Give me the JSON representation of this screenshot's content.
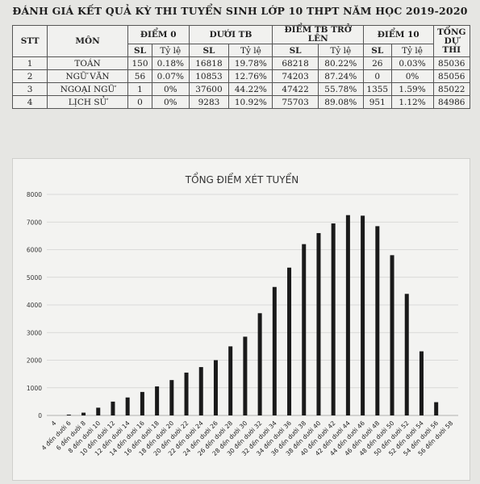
{
  "page_title": "ĐÁNH GIÁ KẾT QUẢ KỲ THI TUYỂN SINH LỚP 10 THPT NĂM HỌC 2019-2020",
  "table": {
    "headers": {
      "stt": "STT",
      "mon": "MÔN",
      "diem0": "ĐIỂM 0",
      "duoi_tb": "DƯỚI TB",
      "tb_tro_len": "ĐIỂM TB TRỞ LÊN",
      "diem10": "ĐIỂM 10",
      "tong": "TỔNG DỰ THI",
      "sl": "SL",
      "ty_le": "Tỷ lệ"
    },
    "rows": [
      {
        "stt": "1",
        "mon": "TOÁN",
        "d0_sl": "150",
        "d0_tl": "0.18%",
        "dtb_sl": "16818",
        "dtb_tl": "19.78%",
        "tb_sl": "68218",
        "tb_tl": "80.22%",
        "d10_sl": "26",
        "d10_tl": "0.03%",
        "tong": "85036"
      },
      {
        "stt": "2",
        "mon": "NGỮ VĂN",
        "d0_sl": "56",
        "d0_tl": "0.07%",
        "dtb_sl": "10853",
        "dtb_tl": "12.76%",
        "tb_sl": "74203",
        "tb_tl": "87.24%",
        "d10_sl": "0",
        "d10_tl": "0%",
        "tong": "85056"
      },
      {
        "stt": "3",
        "mon": "NGOẠI NGỮ",
        "d0_sl": "1",
        "d0_tl": "0%",
        "dtb_sl": "37600",
        "dtb_tl": "44.22%",
        "tb_sl": "47422",
        "tb_tl": "55.78%",
        "d10_sl": "1355",
        "d10_tl": "1.59%",
        "tong": "85022"
      },
      {
        "stt": "4",
        "mon": "LỊCH SỬ",
        "d0_sl": "0",
        "d0_tl": "0%",
        "dtb_sl": "9283",
        "dtb_tl": "10.92%",
        "tb_sl": "75703",
        "tb_tl": "89.08%",
        "d10_sl": "951",
        "d10_tl": "1.12%",
        "tong": "84986"
      }
    ]
  },
  "chart_data": {
    "type": "bar",
    "title": "TỔNG ĐIỂM XÉT TUYỂN",
    "xlabel": "",
    "ylabel": "",
    "ylim": [
      0,
      8000
    ],
    "yticks": [
      0,
      1000,
      2000,
      3000,
      4000,
      5000,
      6000,
      7000,
      8000
    ],
    "grid": true,
    "bar_color": "#1a1a1a",
    "categories": [
      "4",
      "4 đến dưới 6",
      "6 đến dưới 8",
      "8 đến dưới 10",
      "10 đến dưới 12",
      "12 đến dưới 14",
      "14 đến dưới 16",
      "16 đến dưới 18",
      "18 đến dưới 20",
      "20 đến dưới 22",
      "22 đến dưới 24",
      "24 đến dưới 26",
      "26 đến dưới 28",
      "28 đến dưới 30",
      "30 đến dưới 32",
      "32 đến dưới 34",
      "34 đến dưới 36",
      "36 đến dưới 38",
      "38 đến dưới 40",
      "40 đến dưới 42",
      "42 đến dưới 44",
      "44 đến dưới 46",
      "46 đến dưới 48",
      "48 đến dưới 50",
      "50 đến dưới 52",
      "52 đến dưới 54",
      "54 đến dưới 56",
      "56 đến dưới 58"
    ],
    "values": [
      0,
      30,
      100,
      280,
      500,
      650,
      850,
      1050,
      1280,
      1550,
      1750,
      2000,
      2500,
      2850,
      3700,
      4650,
      5350,
      6200,
      6600,
      6950,
      7250,
      7230,
      6850,
      5800,
      4400,
      2320,
      480,
      0
    ]
  }
}
